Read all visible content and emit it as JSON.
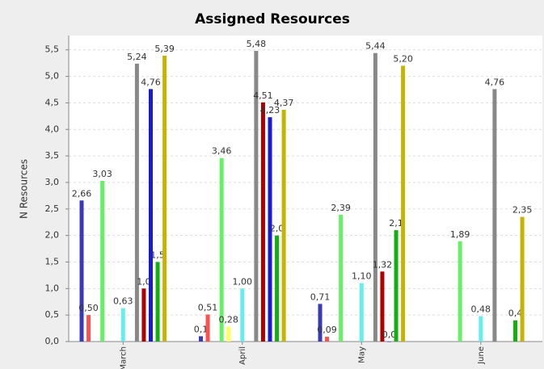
{
  "chart_data": {
    "type": "bar",
    "title": "Assigned Resources",
    "y_label": "N Resources",
    "categories": [
      "March",
      "April",
      "May",
      "June"
    ],
    "ylim": [
      0,
      5.77
    ],
    "yticks": [
      {
        "value": 0,
        "label": "0,0"
      },
      {
        "value": 0.5,
        "label": "0,5"
      },
      {
        "value": 1,
        "label": "1,0"
      },
      {
        "value": 1.5,
        "label": "1,5"
      },
      {
        "value": 2,
        "label": "2,0"
      },
      {
        "value": 2.5,
        "label": "2,5"
      },
      {
        "value": 3,
        "label": "3,0"
      },
      {
        "value": 3.5,
        "label": "3,5"
      },
      {
        "value": 4,
        "label": "4,0"
      },
      {
        "value": 4.5,
        "label": "4,5"
      },
      {
        "value": 5,
        "label": "5,0"
      },
      {
        "value": 5.5,
        "label": "5,5"
      }
    ],
    "grid": true,
    "series": [
      {
        "color": "#3a3ab8",
        "values": [
          2.66,
          0.1,
          0.71,
          null
        ],
        "value_labels": [
          "2,66",
          "0,1",
          "0,71",
          null
        ]
      },
      {
        "color": "#ff5050",
        "values": [
          0.5,
          0.51,
          0.09,
          null
        ],
        "value_labels": [
          "0,50",
          "0,51",
          "0,09",
          null
        ]
      },
      {
        "color": "#66f066",
        "values": [
          3.03,
          3.46,
          2.39,
          1.89
        ],
        "value_labels": [
          "3,03",
          "3,46",
          "2,39",
          "1,89"
        ]
      },
      {
        "color": "#ffff55",
        "values": [
          null,
          0.28,
          null,
          null
        ],
        "value_labels": [
          null,
          "0,28",
          null,
          null
        ]
      },
      {
        "color": "#66eeee",
        "values": [
          0.63,
          1.0,
          1.1,
          0.48
        ],
        "value_labels": [
          "0,63",
          "1,00",
          "1,10",
          "0,48"
        ]
      },
      {
        "color": "#888888",
        "values": [
          5.24,
          5.48,
          5.44,
          4.76
        ],
        "value_labels": [
          "5,24",
          "5,48",
          "5,44",
          "4,76"
        ]
      },
      {
        "color": "#b00000",
        "values": [
          1.0,
          4.51,
          1.32,
          null
        ],
        "value_labels": [
          "1,0",
          "4,51",
          "1,32",
          null
        ]
      },
      {
        "color": "#1a1ad0",
        "values": [
          4.76,
          4.23,
          0.0,
          null
        ],
        "value_labels": [
          "4,76",
          "4,23",
          "0,0",
          null
        ]
      },
      {
        "color": "#10b010",
        "values": [
          1.5,
          2.0,
          2.1,
          0.4
        ],
        "value_labels": [
          "1,5",
          "2,0",
          "2,1",
          "0,4"
        ]
      },
      {
        "color": "#c8b400",
        "values": [
          5.39,
          4.37,
          5.2,
          2.35
        ],
        "value_labels": [
          "5,39",
          "4,37",
          "5,20",
          "2,35"
        ]
      }
    ]
  }
}
